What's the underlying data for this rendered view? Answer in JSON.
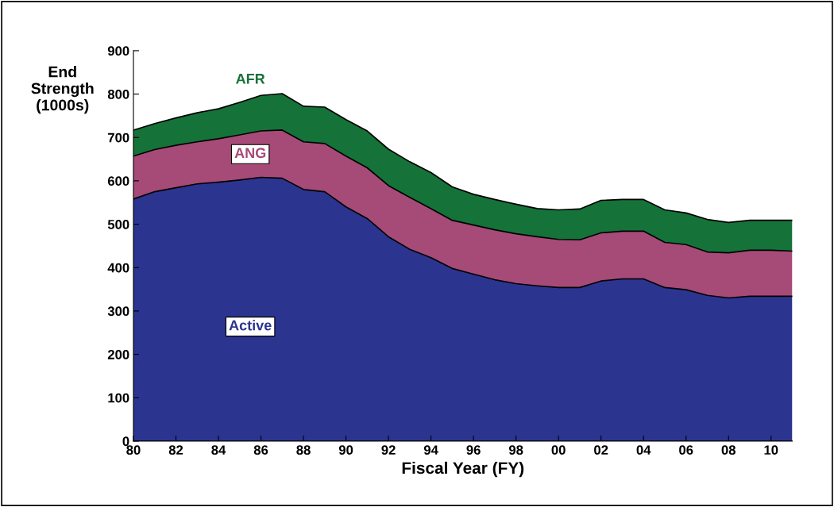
{
  "chart_data": {
    "type": "area",
    "stacked": true,
    "xlabel": "Fiscal Year (FY)",
    "ylabel": "End\nStrength\n(1000s)",
    "x": [
      1980,
      1981,
      1982,
      1983,
      1984,
      1985,
      1986,
      1987,
      1988,
      1989,
      1990,
      1991,
      1992,
      1993,
      1994,
      1995,
      1996,
      1997,
      1998,
      1999,
      2000,
      2001,
      2002,
      2003,
      2004,
      2005,
      2006,
      2007,
      2008,
      2009,
      2010,
      2011
    ],
    "series": [
      {
        "name": "Active",
        "color": "#2b3590",
        "values": [
          558,
          575,
          584,
          593,
          597,
          602,
          608,
          606,
          580,
          575,
          540,
          513,
          471,
          442,
          423,
          398,
          385,
          372,
          363,
          358,
          354,
          354,
          369,
          374,
          374,
          354,
          349,
          336,
          330,
          334,
          334,
          334
        ]
      },
      {
        "name": "ANG",
        "color": "#a64a78",
        "values": [
          99,
          97,
          98,
          97,
          100,
          104,
          107,
          111,
          110,
          111,
          117,
          117,
          118,
          120,
          113,
          111,
          113,
          115,
          115,
          113,
          111,
          110,
          111,
          110,
          110,
          104,
          104,
          100,
          104,
          106,
          106,
          104
        ]
      },
      {
        "name": "AFR",
        "color": "#157238",
        "values": [
          60,
          60,
          63,
          67,
          69,
          75,
          82,
          84,
          82,
          84,
          84,
          85,
          84,
          82,
          83,
          77,
          71,
          70,
          68,
          65,
          68,
          71,
          75,
          73,
          73,
          75,
          73,
          75,
          70,
          69,
          69,
          71
        ]
      }
    ],
    "xlim": [
      1980,
      2011
    ],
    "xticks": [
      {
        "value": 1980,
        "label": "80"
      },
      {
        "value": 1982,
        "label": "82"
      },
      {
        "value": 1984,
        "label": "84"
      },
      {
        "value": 1986,
        "label": "86"
      },
      {
        "value": 1988,
        "label": "88"
      },
      {
        "value": 1990,
        "label": "90"
      },
      {
        "value": 1992,
        "label": "92"
      },
      {
        "value": 1994,
        "label": "94"
      },
      {
        "value": 1996,
        "label": "96"
      },
      {
        "value": 1998,
        "label": "98"
      },
      {
        "value": 2000,
        "label": "00"
      },
      {
        "value": 2002,
        "label": "02"
      },
      {
        "value": 2004,
        "label": "04"
      },
      {
        "value": 2006,
        "label": "06"
      },
      {
        "value": 2008,
        "label": "08"
      },
      {
        "value": 2010,
        "label": "10"
      }
    ],
    "ylim": [
      0,
      900
    ],
    "yticks": [
      0,
      100,
      200,
      300,
      400,
      500,
      600,
      700,
      800,
      900
    ],
    "grid": false,
    "legend": false
  }
}
